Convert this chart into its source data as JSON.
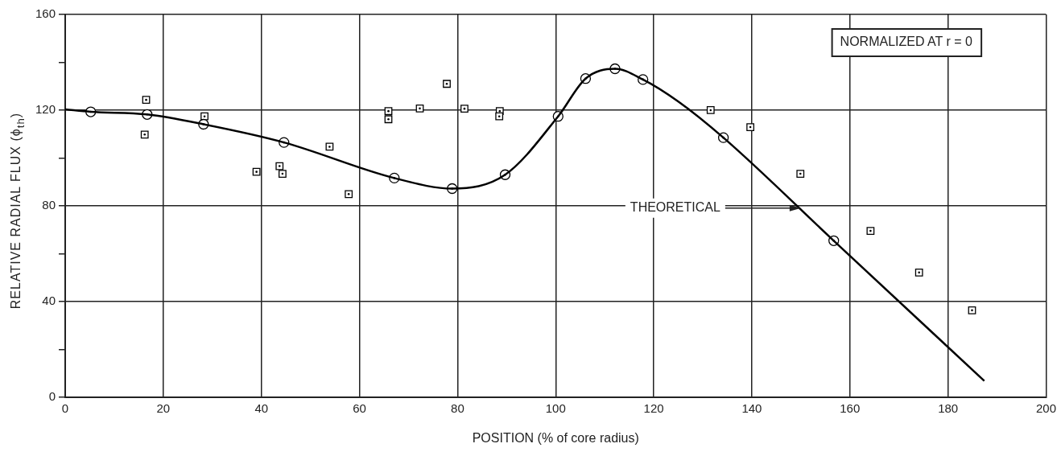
{
  "chart_data": {
    "type": "scatter",
    "xlabel": "POSITION (% of core radius)",
    "ylabel": "RELATIVE RADIAL FLUX (ϕ$_{th}$)",
    "xlim": [
      0,
      200
    ],
    "xticks": [
      0,
      20,
      40,
      60,
      80,
      100,
      120,
      140,
      160,
      180,
      200
    ],
    "ylim": [
      0,
      160
    ],
    "yticks": [
      0,
      {
        "value": 20,
        "label": null
      },
      40,
      {
        "value": 60,
        "label": null
      },
      80,
      {
        "value": 100,
        "label": null
      },
      120,
      {
        "value": 140,
        "label": null
      },
      160
    ],
    "grid": true,
    "legend": false,
    "series": [
      {
        "type": "line",
        "marker": "none",
        "line_style": "solid",
        "color": "#000000",
        "x": [
          0,
          5.2,
          16.7,
          28.2,
          44.6,
          67.1,
          78.9,
          89.7,
          100.5,
          106.1,
          112.1,
          117.8,
          125,
          134.2,
          156.7,
          187.4
        ],
        "values": [
          120.3,
          119.3,
          118.2,
          114.1,
          106.5,
          91.6,
          87.2,
          93.0,
          117.4,
          133.2,
          137.3,
          132.8,
          123.6,
          108.5,
          65.4,
          6.8
        ]
      },
      {
        "type": "scatter",
        "marker": "circle",
        "color": "#000000",
        "x": [
          5.2,
          16.7,
          28.2,
          44.6,
          67.1,
          78.9,
          89.7,
          100.5,
          106.1,
          112.1,
          117.8,
          134.2,
          156.7
        ],
        "values": [
          119.3,
          118.2,
          114.1,
          106.5,
          91.6,
          87.2,
          93.0,
          117.4,
          133.2,
          137.3,
          132.8,
          108.5,
          65.4
        ]
      },
      {
        "type": "scatter",
        "marker": "square",
        "color": "#000000",
        "x": [
          16.5,
          16.2,
          28.4,
          39.0,
          43.7,
          44.3,
          53.9,
          57.8,
          65.9,
          65.9,
          72.3,
          77.8,
          81.4,
          88.6,
          88.5,
          131.6,
          139.7,
          149.9,
          164.2,
          174.1,
          184.9
        ],
        "values": [
          124.3,
          109.8,
          117.4,
          94.2,
          96.6,
          93.4,
          104.7,
          84.9,
          119.6,
          116.2,
          120.7,
          131.0,
          120.6,
          119.6,
          117.4,
          120.0,
          112.9,
          93.4,
          69.5,
          52.1,
          36.3
        ]
      }
    ],
    "annotations": [
      {
        "text": "THEORETICAL",
        "x": 150,
        "y": 79
      },
      "NORMALIZED AT r = 0"
    ]
  }
}
